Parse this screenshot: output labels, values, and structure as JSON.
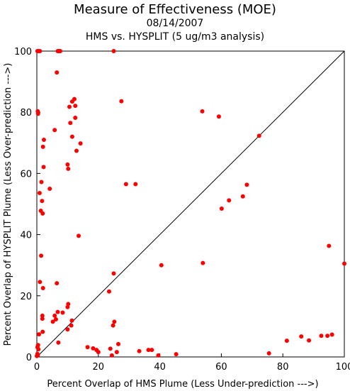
{
  "chart_data": {
    "type": "scatter",
    "title": "Measure of Effectiveness (MOE)",
    "subtitle_date": "08/14/2007",
    "subtitle": "HMS vs. HYSPLIT  (5 ug/m3 analysis)",
    "xlabel": "Percent Overlap of HMS Plume (Less Under-prediction --->)",
    "ylabel": "Percent Overlap of HYSPLIT Plume (Less Over-prediction --->)",
    "xlim": [
      0,
      100
    ],
    "ylim": [
      0,
      100
    ],
    "xticks": [
      0,
      20,
      40,
      60,
      80,
      100
    ],
    "yticks": [
      0,
      20,
      40,
      60,
      80,
      100
    ],
    "grid": false,
    "reference_line": "y = x",
    "point_color": "#ff0000",
    "points": [
      [
        0.2,
        100
      ],
      [
        0.5,
        100
      ],
      [
        1.0,
        100
      ],
      [
        6.8,
        100
      ],
      [
        7.2,
        100
      ],
      [
        7.6,
        100
      ],
      [
        25.0,
        100
      ],
      [
        6.5,
        93.0
      ],
      [
        27.5,
        83.6
      ],
      [
        12.2,
        84.3
      ],
      [
        11.5,
        83.5
      ],
      [
        10.6,
        81.8
      ],
      [
        12.5,
        82.1
      ],
      [
        0.3,
        80.3
      ],
      [
        0.4,
        79.5
      ],
      [
        53.8,
        80.3
      ],
      [
        59.2,
        78.6
      ],
      [
        10.9,
        76.5
      ],
      [
        12.5,
        78.2
      ],
      [
        2.3,
        71.0
      ],
      [
        5.8,
        74.2
      ],
      [
        14.2,
        69.8
      ],
      [
        11.5,
        72.0
      ],
      [
        12.9,
        67.4
      ],
      [
        2.0,
        68.7
      ],
      [
        10.0,
        62.9
      ],
      [
        10.2,
        61.5
      ],
      [
        2.2,
        62.1
      ],
      [
        72.3,
        72.3
      ],
      [
        29.0,
        56.5
      ],
      [
        32.1,
        56.5
      ],
      [
        1.5,
        57.2
      ],
      [
        4.2,
        55.0
      ],
      [
        0.9,
        53.6
      ],
      [
        1.7,
        51.0
      ],
      [
        68.3,
        56.3
      ],
      [
        67.0,
        52.5
      ],
      [
        62.5,
        51.2
      ],
      [
        60.1,
        48.5
      ],
      [
        1.3,
        47.8
      ],
      [
        1.9,
        46.9
      ],
      [
        13.6,
        39.6
      ],
      [
        95.0,
        36.3
      ],
      [
        1.4,
        33.1
      ],
      [
        54.0,
        30.7
      ],
      [
        40.5,
        30.0
      ],
      [
        100.0,
        30.5
      ],
      [
        25.0,
        27.3
      ],
      [
        1.0,
        24.5
      ],
      [
        6.5,
        24.1
      ],
      [
        2.0,
        22.5
      ],
      [
        23.5,
        21.4
      ],
      [
        10.2,
        17.3
      ],
      [
        10.0,
        16.3
      ],
      [
        8.4,
        14.5
      ],
      [
        6.8,
        14.7
      ],
      [
        1.8,
        13.5
      ],
      [
        5.8,
        13.5
      ],
      [
        1.8,
        12.5
      ],
      [
        5.2,
        11.5
      ],
      [
        6.2,
        12.3
      ],
      [
        11.4,
        11.9
      ],
      [
        25.2,
        11.5
      ],
      [
        11.2,
        10.3
      ],
      [
        24.8,
        10.3
      ],
      [
        0.7,
        7.4
      ],
      [
        10.0,
        9.0
      ],
      [
        1.9,
        8.2
      ],
      [
        86.0,
        6.7
      ],
      [
        92.5,
        6.9
      ],
      [
        94.5,
        6.9
      ],
      [
        96.0,
        7.3
      ],
      [
        88.5,
        5.4
      ],
      [
        81.3,
        5.3
      ],
      [
        7.0,
        4.7
      ],
      [
        26.5,
        4.2
      ],
      [
        0.4,
        3.9
      ],
      [
        0.2,
        3.2
      ],
      [
        0.5,
        2.5
      ],
      [
        16.5,
        3.2
      ],
      [
        18.3,
        2.8
      ],
      [
        19.4,
        2.3
      ],
      [
        23.9,
        2.7
      ],
      [
        36.3,
        2.3
      ],
      [
        37.4,
        2.3
      ],
      [
        33.3,
        1.9
      ],
      [
        20.0,
        1.6
      ],
      [
        26.0,
        1.6
      ],
      [
        0.2,
        1.0
      ],
      [
        45.3,
        0.9
      ],
      [
        75.5,
        1.2
      ],
      [
        24.4,
        0.5
      ],
      [
        39.5,
        0.5
      ],
      [
        0.0,
        0.3
      ],
      [
        0.3,
        0.5
      ]
    ]
  }
}
